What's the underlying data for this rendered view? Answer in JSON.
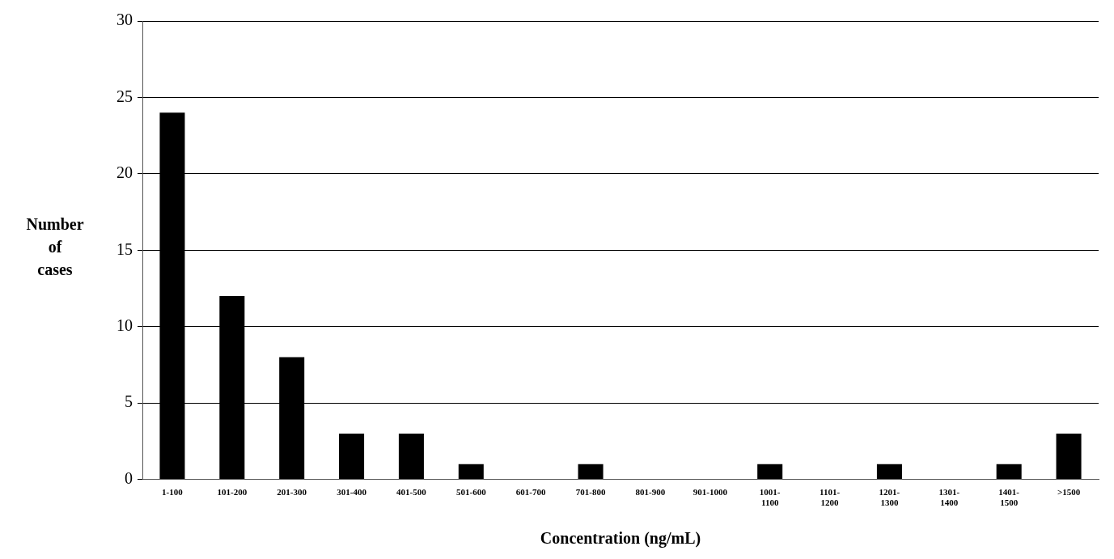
{
  "chart_data": {
    "type": "bar",
    "xlabel": "Concentration (ng/mL)",
    "ylabel": "Number of cases",
    "categories": [
      "1-100",
      "101-200",
      "201-300",
      "301-400",
      "401-500",
      "501-600",
      "601-700",
      "701-800",
      "801-900",
      "901-1000",
      "1001-1100",
      "1101-1200",
      "1201-1300",
      "1301-1400",
      "1401-1500",
      ">1500"
    ],
    "values": [
      24,
      12,
      8,
      3,
      3,
      1,
      0,
      1,
      0,
      0,
      1,
      0,
      1,
      0,
      1,
      3
    ],
    "color": "#000000",
    "ylim": [
      0,
      30
    ],
    "yticks": [
      0,
      5,
      10,
      15,
      20,
      25,
      30
    ],
    "grid": "y",
    "legend": false
  }
}
